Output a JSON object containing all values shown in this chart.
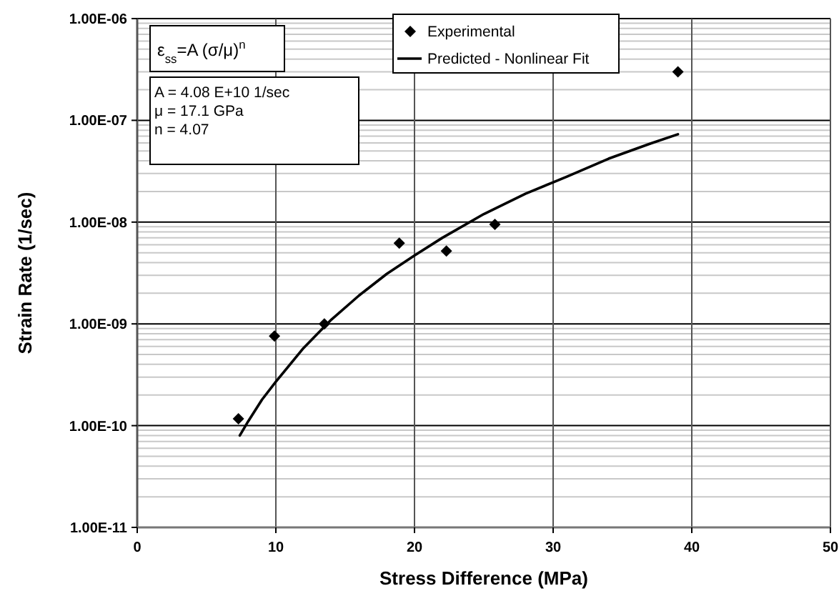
{
  "chart_data": {
    "type": "scatter",
    "xlabel": "Stress Difference (MPa)",
    "ylabel": "Strain Rate (1/sec)",
    "xlim": [
      0,
      50
    ],
    "xticks": [
      0,
      10,
      20,
      30,
      40,
      50
    ],
    "ylim": [
      1e-11,
      1e-06
    ],
    "yticks": [
      {
        "value": 1e-11,
        "label": "1.00E-11"
      },
      {
        "value": 1e-10,
        "label": "1.00E-10"
      },
      {
        "value": 1e-09,
        "label": "1.00E-09"
      },
      {
        "value": 1e-08,
        "label": "1.00E-08"
      },
      {
        "value": 1e-07,
        "label": "1.00E-07"
      },
      {
        "value": 1e-06,
        "label": "1.00E-06"
      }
    ],
    "log": "y",
    "grid": true,
    "legend": "top",
    "annotations": [
      "ε$_{ss}$=A (σ/μ)$^{n}$",
      "A =  4.08 E+10 1/sec",
      "μ = 17.1 GPa",
      "n = 4.07"
    ],
    "series": [
      {
        "name": "Experimental",
        "marker": "diamond",
        "color": "#000000",
        "x": [
          7.3,
          9.9,
          13.5,
          18.9,
          22.3,
          25.8,
          39.0
        ],
        "values": [
          1.17e-10,
          7.6e-10,
          1e-09,
          6.2e-09,
          5.2e-09,
          9.5e-09,
          3e-07
        ]
      },
      {
        "name": "Predicted - Nonlinear Fit",
        "type": "line",
        "marker": "none",
        "line_style": "solid",
        "color": "#000000",
        "x": [
          7.4,
          8,
          9,
          10,
          12,
          14,
          16,
          18,
          20,
          22,
          25,
          28,
          31,
          34,
          37,
          39
        ],
        "values": [
          8e-11,
          1.1e-10,
          1.8e-10,
          2.7e-10,
          5.8e-10,
          1.1e-09,
          1.9e-09,
          3.1e-09,
          4.7e-09,
          7e-09,
          1.2e-08,
          1.9e-08,
          2.8e-08,
          4.2e-08,
          5.9e-08,
          7.3e-08
        ]
      }
    ]
  }
}
